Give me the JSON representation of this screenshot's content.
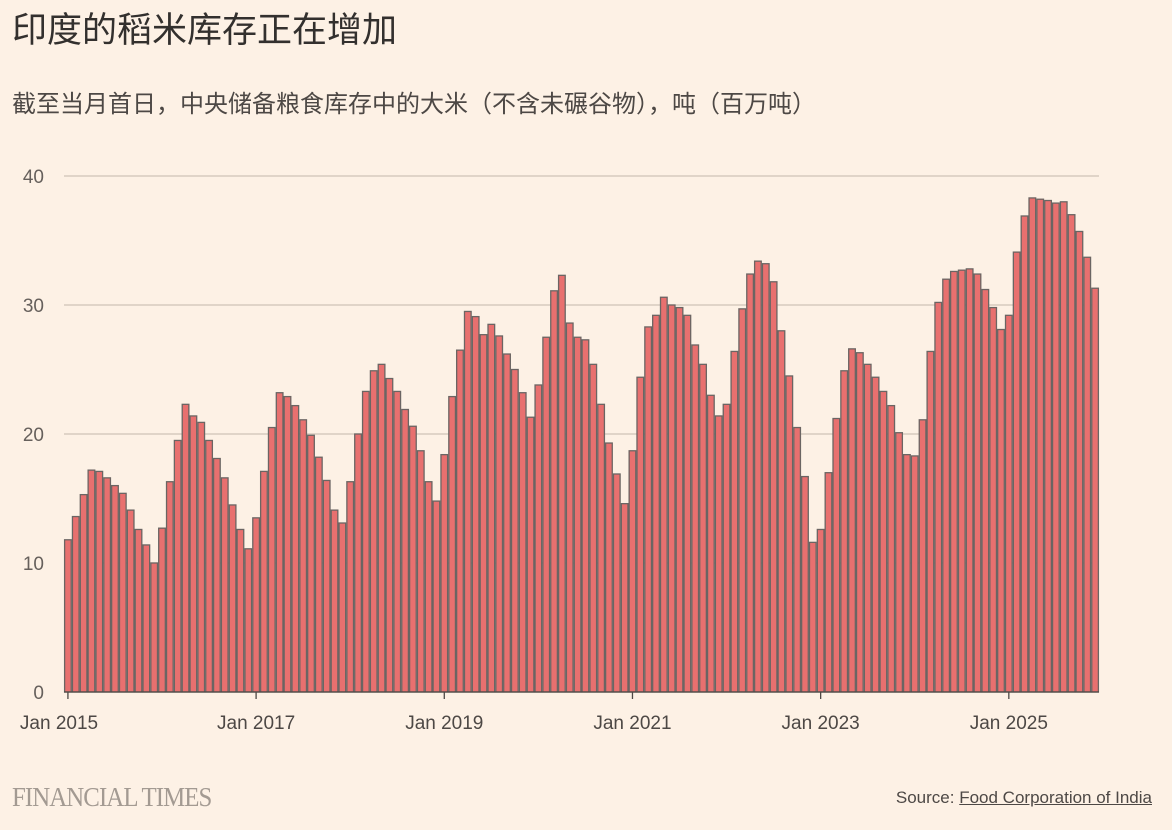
{
  "title": "印度的稻米库存正在增加",
  "subtitle": "截至当月首日，中央储备粮食库存中的大米（不含未碾谷物），吨（百万吨）",
  "footer": {
    "logo": "FINANCIAL TIMES",
    "source_prefix": "Source: ",
    "source_link": "Food Corporation of India"
  },
  "colors": {
    "bar_fill": "#e8706f",
    "bar_stroke": "#6b6563",
    "background": "#fdf1e5",
    "grid": "#cfc3b8"
  },
  "chart_data": {
    "type": "bar",
    "title": "印度的稻米库存正在增加",
    "xlabel": "",
    "ylabel": "",
    "ylim": [
      0,
      40
    ],
    "yticks": [
      0,
      10,
      20,
      30,
      40
    ],
    "grid": true,
    "x_start": "Jan 2015",
    "x_end": "Dec 2025",
    "xtick_labels": [
      "Jan 2015",
      "Jan 2017",
      "Jan 2019",
      "Jan 2021",
      "Jan 2023",
      "Jan 2025"
    ],
    "series": [
      {
        "values": [
          11.8,
          13.6,
          15.3,
          17.2,
          17.1,
          16.6,
          16.0,
          15.4,
          14.1,
          12.6,
          11.4,
          10.0,
          12.7,
          16.3,
          19.5,
          22.3,
          21.4,
          20.9,
          19.5,
          18.1,
          16.6,
          14.5,
          12.6,
          11.1,
          13.5,
          17.1,
          20.5,
          23.2,
          22.9,
          22.2,
          21.1,
          19.9,
          18.2,
          16.4,
          14.1,
          13.1,
          16.3,
          20.0,
          23.3,
          24.9,
          25.4,
          24.3,
          23.3,
          21.9,
          20.6,
          18.7,
          16.3,
          14.8,
          18.4,
          22.9,
          26.5,
          29.5,
          29.1,
          27.7,
          28.5,
          27.6,
          26.2,
          25.0,
          23.2,
          21.3,
          23.8,
          27.5,
          31.1,
          32.3,
          28.6,
          27.5,
          27.3,
          25.4,
          22.3,
          19.3,
          16.9,
          14.6,
          18.7,
          24.4,
          28.3,
          29.2,
          30.6,
          30.0,
          29.8,
          29.2,
          26.9,
          25.4,
          23.0,
          21.4,
          22.3,
          26.4,
          29.7,
          32.4,
          33.4,
          33.2,
          31.8,
          28.0,
          24.5,
          20.5,
          16.7,
          11.6,
          12.6,
          17.0,
          21.2,
          24.9,
          26.6,
          26.3,
          25.4,
          24.4,
          23.3,
          22.2,
          20.1,
          18.4,
          18.3,
          21.1,
          26.4,
          30.2,
          32.0,
          32.6,
          32.7,
          32.8,
          32.4,
          31.2,
          29.8,
          28.1,
          29.2,
          34.1,
          36.9,
          38.3,
          38.2,
          38.1,
          37.9,
          38.0,
          37.0,
          35.7,
          33.7,
          31.3
        ]
      }
    ]
  }
}
